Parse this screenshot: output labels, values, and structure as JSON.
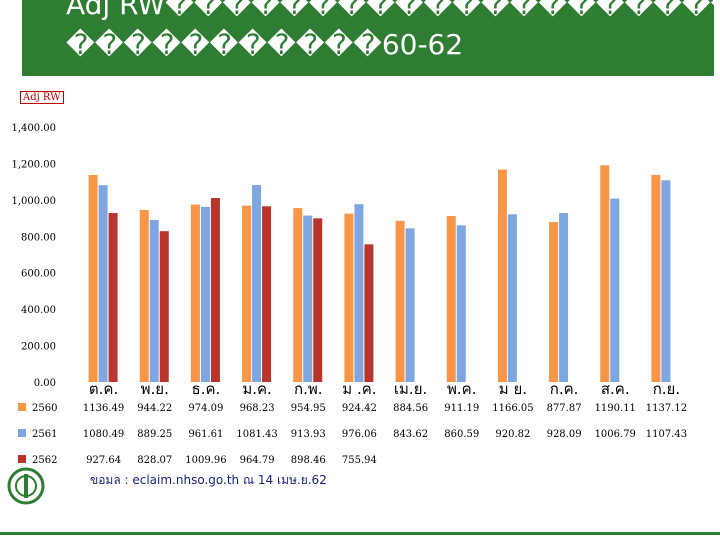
{
  "header": {
    "title_line1": "Adj RW����������������������",
    "title_line2": "�����������60-62"
  },
  "footer": {
    "source": "ขอมล   : eclaim.nhso.go.th   ณ 14 เมษ.ย.62"
  },
  "colors": {
    "title_bg": "#2e7d32",
    "s2560": "#f79646",
    "s2561": "#7ea6e0",
    "s2562": "#b7352a"
  },
  "chart_data": {
    "type": "bar",
    "ylabel": "Adj RW",
    "ylim": [
      0,
      1400
    ],
    "yticks": [
      "1,400.00",
      "1,200.00",
      "1,000.00",
      "800.00",
      "600.00",
      "400.00",
      "200.00",
      "0.00"
    ],
    "categories": [
      "ต.ค.",
      "พ.ย.",
      "ธ.ค.",
      "ม.ค.",
      "ก.พ.",
      "ม .ค.",
      "เม.ย.",
      "พ.ค.",
      "ม ย.",
      "ก.ค.",
      "ส.ค.",
      "ก.ย."
    ],
    "series": [
      {
        "name": "2560",
        "color": "#f79646",
        "values": [
          1136.49,
          944.22,
          974.09,
          968.23,
          954.95,
          924.42,
          884.56,
          911.19,
          1166.05,
          877.87,
          1190.11,
          1137.12
        ]
      },
      {
        "name": "2561",
        "color": "#7ea6e0",
        "values": [
          1080.49,
          889.25,
          961.61,
          1081.43,
          913.93,
          976.06,
          843.62,
          860.59,
          920.82,
          928.09,
          1006.79,
          1107.43
        ]
      },
      {
        "name": "2562",
        "color": "#b7352a",
        "values": [
          927.64,
          828.07,
          1009.96,
          964.79,
          898.46,
          755.94,
          null,
          null,
          null,
          null,
          null,
          null
        ]
      }
    ],
    "table_values": [
      [
        "1136.49",
        "944.22",
        "974.09",
        "968.23",
        "954.95",
        "924.42",
        "884.56",
        "911.19",
        "1166.05",
        "877.87",
        "1190.11",
        "1137.12"
      ],
      [
        "1080.49",
        "889.25",
        "961.61",
        "1081.43",
        "913.93",
        "976.06",
        "843.62",
        "860.59",
        "920.82",
        "928.09",
        "1006.79",
        "1107.43"
      ],
      [
        "927.64",
        "828.07",
        "1009.96",
        "964.79",
        "898.46",
        "755.94",
        "",
        "",
        "",
        "",
        "",
        ""
      ]
    ],
    "legend_placement": "data-table-left",
    "grid": false
  }
}
